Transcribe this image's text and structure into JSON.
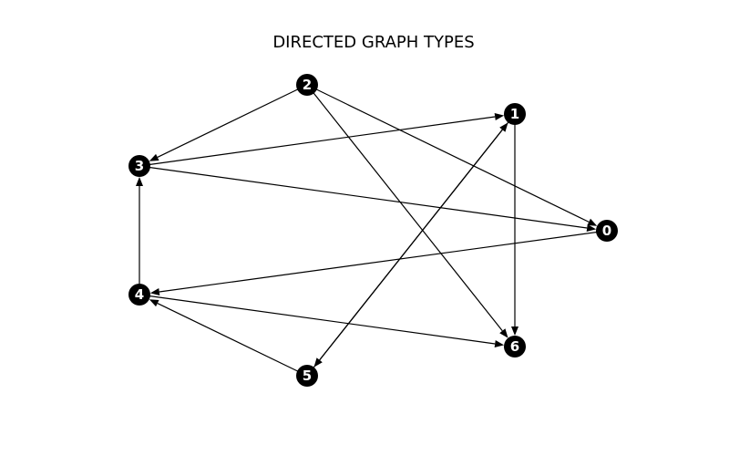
{
  "title": "DIRECTED GRAPH TYPES",
  "colors": {
    "node_fill": "#000000",
    "node_label": "#ffffff",
    "edge": "#000000",
    "background": "#ffffff"
  },
  "nodes": [
    {
      "id": "0",
      "label": "0"
    },
    {
      "id": "1",
      "label": "1"
    },
    {
      "id": "2",
      "label": "2"
    },
    {
      "id": "3",
      "label": "3"
    },
    {
      "id": "4",
      "label": "4"
    },
    {
      "id": "5",
      "label": "5"
    },
    {
      "id": "6",
      "label": "6"
    }
  ],
  "edges": [
    {
      "from": "2",
      "to": "3"
    },
    {
      "from": "2",
      "to": "0"
    },
    {
      "from": "2",
      "to": "6"
    },
    {
      "from": "3",
      "to": "1"
    },
    {
      "from": "3",
      "to": "0"
    },
    {
      "from": "1",
      "to": "6"
    },
    {
      "from": "1",
      "to": "5"
    },
    {
      "from": "5",
      "to": "1"
    },
    {
      "from": "0",
      "to": "4"
    },
    {
      "from": "4",
      "to": "3"
    },
    {
      "from": "4",
      "to": "6"
    },
    {
      "from": "5",
      "to": "4"
    }
  ]
}
